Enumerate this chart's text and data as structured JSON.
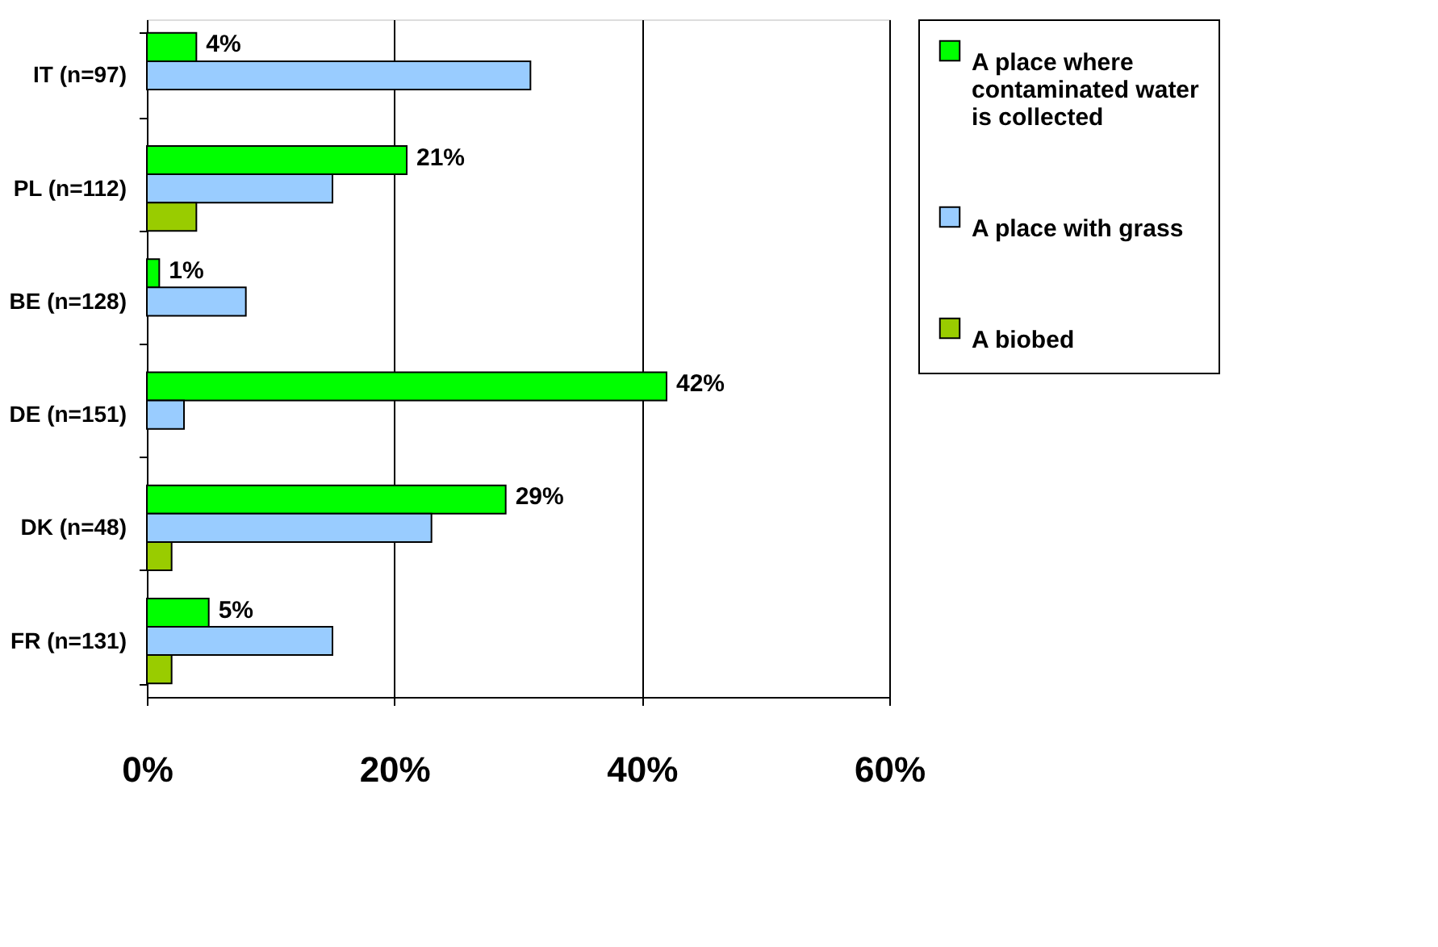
{
  "chart_data": {
    "type": "bar",
    "orientation": "horizontal",
    "categories": [
      "IT (n=97)",
      "PL (n=112)",
      "BE (n=128)",
      "DE (n=151)",
      "DK (n=48)",
      "FR (n=131)"
    ],
    "series": [
      {
        "name": "A place where contaminated water is collected",
        "color": "#00ff00",
        "values": [
          4,
          21,
          1,
          42,
          29,
          5
        ],
        "value_labels": [
          "4%",
          "21%",
          "1%",
          "42%",
          "29%",
          "5%"
        ]
      },
      {
        "name": "A place with grass",
        "color": "#99ccff",
        "values": [
          31,
          15,
          8,
          3,
          23,
          15
        ]
      },
      {
        "name": "A biobed",
        "color": "#99cc00",
        "values": [
          null,
          4,
          null,
          null,
          2,
          2
        ]
      }
    ],
    "xlim": [
      0,
      60
    ],
    "xticks": [
      {
        "value": 0,
        "label": "0%"
      },
      {
        "value": 20,
        "label": "20%"
      },
      {
        "value": 40,
        "label": "40%"
      },
      {
        "value": 60,
        "label": "60%"
      }
    ],
    "grid": "x",
    "legend": "right"
  }
}
